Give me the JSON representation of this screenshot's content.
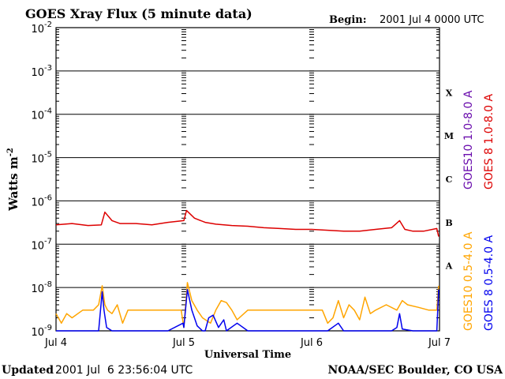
{
  "header": {
    "title": "GOES Xray Flux (5 minute data)",
    "begin_label": "Begin:",
    "begin_value": "2001 Jul 4 0000 UTC"
  },
  "footer": {
    "updated_label": "Updated",
    "updated_value": "2001 Jul  6 23:56:04 UTC",
    "credit": "NOAA/SEC Boulder, CO USA"
  },
  "chart_data": {
    "type": "line",
    "title": "GOES Xray Flux (5 minute data)",
    "xlabel": "Universal Time",
    "ylabel_main": "Watts m",
    "ylabel_sup": "-2",
    "y_scale": "log",
    "ylim": [
      1e-09,
      0.01
    ],
    "xlim": [
      "2001-07-04 00:00",
      "2001-07-07 00:00"
    ],
    "x_ticks": [
      "Jul 4",
      "Jul 5",
      "Jul 6",
      "Jul 7"
    ],
    "y_ticks": [
      {
        "base": "10",
        "exp": "-2"
      },
      {
        "base": "10",
        "exp": "-3"
      },
      {
        "base": "10",
        "exp": "-4"
      },
      {
        "base": "10",
        "exp": "-5"
      },
      {
        "base": "10",
        "exp": "-6"
      },
      {
        "base": "10",
        "exp": "-7"
      },
      {
        "base": "10",
        "exp": "-8"
      },
      {
        "base": "10",
        "exp": "-9"
      }
    ],
    "flare_classes": [
      "X",
      "M",
      "C",
      "B",
      "A"
    ],
    "grid": true,
    "legend_placement": "right, rotated vertical",
    "series": [
      {
        "name": "GOES10 1.0-8.0 A",
        "color": "#6a0dad",
        "x": [],
        "y": []
      },
      {
        "name": "GOES 8 1.0-8.0 A",
        "color": "#dd0000",
        "x": [
          "07-04 00:00",
          "07-04 03:00",
          "07-04 06:00",
          "07-04 08:30",
          "07-04 09:10",
          "07-04 10:30",
          "07-04 12:00",
          "07-04 15:00",
          "07-04 18:00",
          "07-04 21:00",
          "07-05 00:00",
          "07-05 00:30",
          "07-05 02:00",
          "07-05 04:00",
          "07-05 06:00",
          "07-05 09:00",
          "07-05 12:00",
          "07-05 15:00",
          "07-05 18:00",
          "07-05 21:00",
          "07-06 00:00",
          "07-06 03:00",
          "07-06 06:00",
          "07-06 09:00",
          "07-06 12:00",
          "07-06 15:00",
          "07-06 16:30",
          "07-06 17:30",
          "07-06 19:00",
          "07-06 21:00",
          "07-06 23:30",
          "07-06 23:50"
        ],
        "y": [
          2.8e-07,
          3e-07,
          2.7e-07,
          2.8e-07,
          5.5e-07,
          3.5e-07,
          3e-07,
          3e-07,
          2.8e-07,
          3.2e-07,
          3.5e-07,
          6e-07,
          4e-07,
          3.2e-07,
          2.9e-07,
          2.7e-07,
          2.6e-07,
          2.4e-07,
          2.3e-07,
          2.2e-07,
          2.2e-07,
          2.1e-07,
          2e-07,
          2e-07,
          2.2e-07,
          2.4e-07,
          3.5e-07,
          2.2e-07,
          2e-07,
          2e-07,
          2.3e-07,
          1.5e-07
        ]
      },
      {
        "name": "GOES10 0.5-4.0 A",
        "color": "#ffa500",
        "x": [
          "07-04 00:00",
          "07-04 01:00",
          "07-04 02:00",
          "07-04 03:00",
          "07-04 05:00",
          "07-04 07:00",
          "07-04 08:00",
          "07-04 08:40",
          "07-04 09:10",
          "07-04 09:40",
          "07-04 10:30",
          "07-04 11:30",
          "07-04 12:30",
          "07-04 13:30",
          "07-04 14:30",
          "07-04 16:00",
          "07-04 18:00",
          "07-04 20:00",
          "07-04 22:00",
          "07-04 23:30",
          "07-05 00:00",
          "07-05 00:40",
          "07-05 01:30",
          "07-05 02:30",
          "07-05 03:30",
          "07-05 05:00",
          "07-05 06:00",
          "07-05 07:00",
          "07-05 08:00",
          "07-05 09:00",
          "07-05 10:00",
          "07-05 12:00",
          "07-05 15:00",
          "07-05 18:00",
          "07-05 21:00",
          "07-06 00:00",
          "07-06 02:00",
          "07-06 03:00",
          "07-06 04:00",
          "07-06 05:00",
          "07-06 06:00",
          "07-06 07:00",
          "07-06 08:00",
          "07-06 09:00",
          "07-06 10:00",
          "07-06 11:00",
          "07-06 12:00",
          "07-06 14:00",
          "07-06 16:00",
          "07-06 17:00",
          "07-06 18:00",
          "07-06 20:00",
          "07-06 22:00",
          "07-06 23:30",
          "07-06 23:50"
        ],
        "y": [
          2.5e-09,
          1.5e-09,
          2.5e-09,
          2e-09,
          3e-09,
          3e-09,
          4e-09,
          1.1e-08,
          4e-09,
          3e-09,
          2.5e-09,
          4e-09,
          1.5e-09,
          3e-09,
          3e-09,
          3e-09,
          3e-09,
          3e-09,
          3e-09,
          3e-09,
          1.2e-09,
          1.3e-08,
          5e-09,
          3e-09,
          2e-09,
          1.5e-09,
          3e-09,
          5e-09,
          4.5e-09,
          3e-09,
          1.8e-09,
          3e-09,
          3e-09,
          3e-09,
          3e-09,
          3e-09,
          3e-09,
          1.5e-09,
          2e-09,
          5e-09,
          2e-09,
          4e-09,
          3e-09,
          1.8e-09,
          6e-09,
          2.5e-09,
          3e-09,
          4e-09,
          3e-09,
          5e-09,
          4e-09,
          3.5e-09,
          3e-09,
          3e-09,
          1.1e-08
        ]
      },
      {
        "name": "GOES 8 0.5-4.0 A",
        "color": "#0000ee",
        "x": [
          "07-04 00:00",
          "07-04 08:00",
          "07-04 08:40",
          "07-04 09:00",
          "07-04 09:30",
          "07-04 10:30",
          "07-04 12:00",
          "07-04 15:00",
          "07-04 18:00",
          "07-04 21:00",
          "07-04 23:50",
          "07-05 00:00",
          "07-05 00:40",
          "07-05 01:30",
          "07-05 02:30",
          "07-05 03:30",
          "07-05 04:00",
          "07-05 04:40",
          "07-05 05:30",
          "07-05 06:30",
          "07-05 07:30",
          "07-05 08:00",
          "07-05 10:00",
          "07-05 12:00",
          "07-05 15:00",
          "07-05 18:00",
          "07-05 21:00",
          "07-06 00:00",
          "07-06 03:00",
          "07-06 05:00",
          "07-06 06:00",
          "07-06 09:00",
          "07-06 12:00",
          "07-06 15:00",
          "07-06 16:00",
          "07-06 16:30",
          "07-06 17:00",
          "07-06 19:00",
          "07-06 21:00",
          "07-06 23:30",
          "07-06 23:50"
        ],
        "y": [
          1e-09,
          1e-09,
          8e-09,
          3e-09,
          1.2e-09,
          1e-09,
          1e-09,
          1e-09,
          1e-09,
          1e-09,
          1.5e-09,
          1.2e-09,
          9e-09,
          3e-09,
          1.3e-09,
          1e-09,
          1e-09,
          2e-09,
          2.3e-09,
          1.2e-09,
          1.8e-09,
          1e-09,
          1.5e-09,
          1e-09,
          1e-09,
          1e-09,
          1e-09,
          1e-09,
          1e-09,
          1.5e-09,
          1e-09,
          1e-09,
          1e-09,
          1e-09,
          1.2e-09,
          2.5e-09,
          1.1e-09,
          1e-09,
          1e-09,
          1e-09,
          9e-09
        ]
      }
    ]
  }
}
